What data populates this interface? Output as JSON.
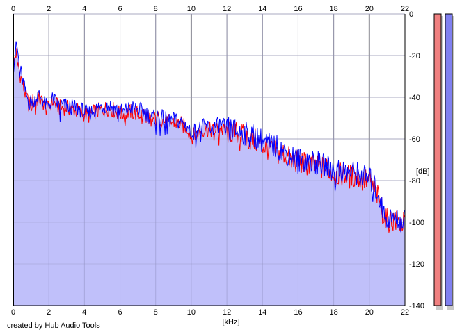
{
  "chart_data": {
    "type": "area",
    "xlabel": "[kHz]",
    "ylabel": "[dB]",
    "xlim": [
      0,
      22
    ],
    "ylim": [
      -140,
      0
    ],
    "x_ticks": [
      "0",
      "2",
      "4",
      "6",
      "8",
      "10",
      "12",
      "14",
      "16",
      "18",
      "20",
      "22"
    ],
    "y_ticks": [
      "0",
      "-20",
      "-40",
      "-60",
      "-80",
      "-100",
      "-120",
      "-140"
    ],
    "grid": true,
    "series": [
      {
        "color": "#ff0000",
        "x": [
          0,
          0.1,
          0.2,
          0.35,
          0.5,
          0.7,
          0.9,
          1.1,
          1.3,
          1.5,
          1.7,
          1.9,
          2.2,
          2.6,
          3.0,
          3.4,
          3.8,
          4.2,
          4.6,
          5.0,
          5.4,
          5.8,
          6.2,
          6.6,
          7.0,
          7.4,
          7.8,
          8.2,
          8.6,
          9.0,
          9.4,
          9.8,
          10.0,
          10.4,
          10.8,
          11.2,
          11.6,
          12.0,
          12.4,
          12.8,
          13.2,
          13.6,
          14.0,
          14.4,
          14.8,
          15.2,
          15.6,
          16.0,
          16.4,
          16.8,
          17.2,
          17.6,
          18.0,
          18.4,
          18.8,
          19.2,
          19.6,
          20.0,
          20.3,
          20.6,
          20.8,
          21.0,
          21.3,
          21.6,
          22.0
        ],
        "values": [
          -27,
          -20,
          -19,
          -28,
          -33,
          -39,
          -44,
          -42,
          -41,
          -41,
          -43,
          -46,
          -42,
          -45,
          -45,
          -46,
          -47,
          -49,
          -47,
          -46,
          -45,
          -47,
          -48,
          -47,
          -48,
          -48,
          -51,
          -50,
          -52,
          -52,
          -53,
          -55,
          -59,
          -57,
          -55,
          -56,
          -55,
          -57,
          -57,
          -58,
          -60,
          -61,
          -63,
          -65,
          -67,
          -67,
          -70,
          -71,
          -72,
          -73,
          -74,
          -74,
          -77,
          -77,
          -78,
          -78,
          -80,
          -80,
          -85,
          -90,
          -97,
          -99,
          -99,
          -100,
          -101
        ]
      },
      {
        "color": "#0000ff",
        "x": [
          0,
          0.1,
          0.2,
          0.35,
          0.5,
          0.7,
          0.9,
          1.1,
          1.3,
          1.5,
          1.7,
          1.9,
          2.2,
          2.6,
          3.0,
          3.4,
          3.8,
          4.2,
          4.6,
          5.0,
          5.4,
          5.8,
          6.2,
          6.6,
          7.0,
          7.4,
          7.8,
          8.2,
          8.6,
          9.0,
          9.4,
          9.8,
          10.0,
          10.4,
          10.8,
          11.2,
          11.6,
          12.0,
          12.4,
          12.8,
          13.2,
          13.6,
          14.0,
          14.4,
          14.8,
          15.2,
          15.6,
          16.0,
          16.4,
          16.8,
          17.2,
          17.6,
          18.0,
          18.4,
          18.8,
          19.2,
          19.6,
          20.0,
          20.3,
          20.6,
          20.8,
          21.0,
          21.3,
          21.6,
          22.0
        ],
        "values": [
          -26,
          -19,
          -15,
          -25,
          -31,
          -38,
          -43,
          -41,
          -40,
          -39,
          -42,
          -45,
          -41,
          -44,
          -44,
          -45,
          -46,
          -48,
          -46,
          -44,
          -44,
          -46,
          -47,
          -45,
          -46,
          -47,
          -50,
          -49,
          -51,
          -51,
          -52,
          -54,
          -57,
          -55,
          -54,
          -55,
          -53,
          -55,
          -56,
          -57,
          -58,
          -59,
          -61,
          -63,
          -64,
          -66,
          -68,
          -70,
          -70,
          -71,
          -72,
          -73,
          -75,
          -75,
          -76,
          -76,
          -78,
          -79,
          -83,
          -89,
          -96,
          -98,
          -98,
          -99,
          -100
        ]
      }
    ],
    "level_meters": [
      {
        "color": "#f08080"
      },
      {
        "color": "#8080f0"
      }
    ]
  },
  "footer": {
    "credit": "created by Hub Audio Tools"
  }
}
